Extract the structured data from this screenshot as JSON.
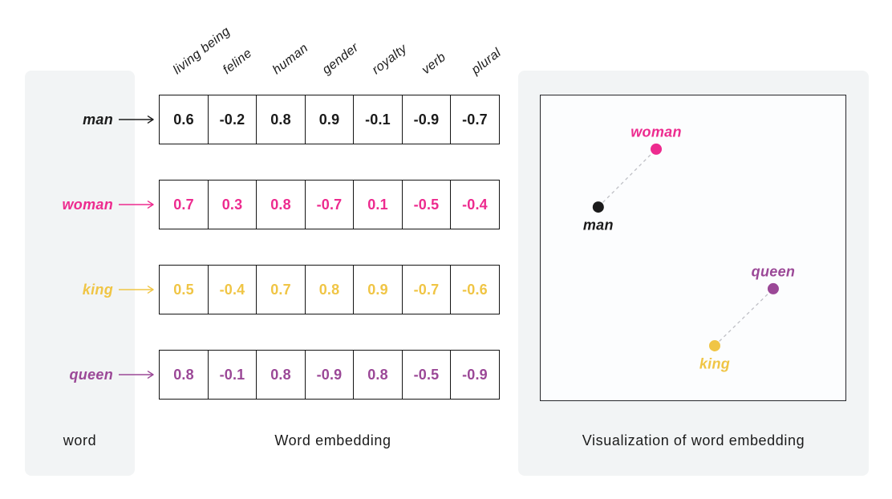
{
  "captions": {
    "word": "word",
    "embedding": "Word embedding",
    "visualization": "Visualization of word embedding"
  },
  "features": [
    "living being",
    "feline",
    "human",
    "gender",
    "royalty",
    "verb",
    "plural"
  ],
  "words": [
    {
      "word": "man",
      "color": "#1b1b1b",
      "values": [
        "0.6",
        "-0.2",
        "0.8",
        "0.9",
        "-0.1",
        "-0.9",
        "-0.7"
      ]
    },
    {
      "word": "woman",
      "color": "#ed2b8f",
      "values": [
        "0.7",
        "0.3",
        "0.8",
        "-0.7",
        "0.1",
        "-0.5",
        "-0.4"
      ]
    },
    {
      "word": "king",
      "color": "#f0c545",
      "values": [
        "0.5",
        "-0.4",
        "0.7",
        "0.8",
        "0.9",
        "-0.7",
        "-0.6"
      ]
    },
    {
      "word": "queen",
      "color": "#9b4897",
      "values": [
        "0.8",
        "-0.1",
        "0.8",
        "-0.9",
        "0.8",
        "-0.5",
        "-0.9"
      ]
    }
  ],
  "chart_data": {
    "type": "scatter",
    "title": "Visualization of word embedding",
    "points": [
      {
        "label": "man",
        "x": 0.189,
        "y": 0.366,
        "color": "#1b1b1b",
        "label_side": "below"
      },
      {
        "label": "woman",
        "x": 0.379,
        "y": 0.176,
        "color": "#ed2b8f",
        "label_side": "above"
      },
      {
        "label": "king",
        "x": 0.571,
        "y": 0.821,
        "color": "#f0c545",
        "label_side": "below"
      },
      {
        "label": "queen",
        "x": 0.763,
        "y": 0.634,
        "color": "#9b4897",
        "label_side": "above"
      }
    ],
    "connections": [
      [
        "man",
        "woman"
      ],
      [
        "king",
        "queen"
      ]
    ]
  },
  "palette": {
    "panel_bg": "#f2f4f5",
    "plot_bg": "#fcfdfe",
    "cell_border": "#141414",
    "dash_line": "#bfc0c6"
  }
}
